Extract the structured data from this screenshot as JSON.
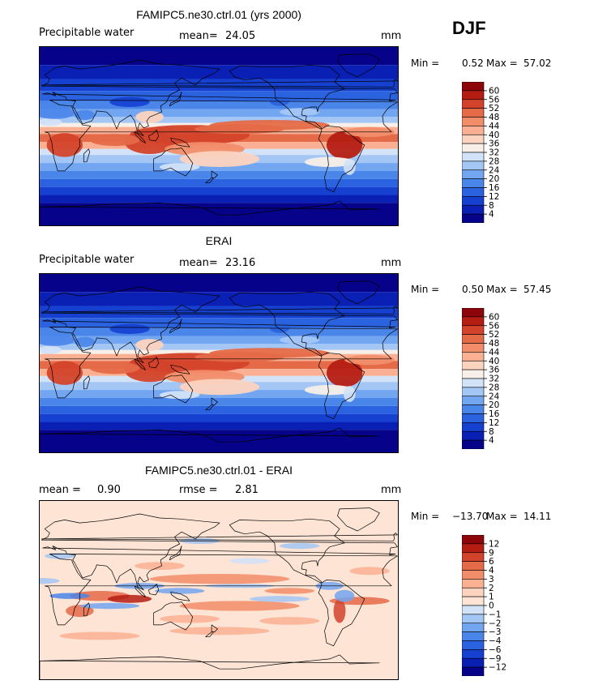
{
  "season": "DJF",
  "panels": [
    {
      "title": "FAMIPC5.ne30.ctrl.01 (yrs 2000)",
      "left_label": "Precipitable water",
      "stat_label": "mean=",
      "stat_value": "24.05",
      "unit": "mm",
      "min_label": "Min =",
      "min_value": "0.52",
      "max_label": "Max =",
      "max_value": "57.02",
      "colorbar_ticks": [
        "60",
        "56",
        "52",
        "48",
        "44",
        "40",
        "36",
        "32",
        "28",
        "24",
        "20",
        "16",
        "12",
        "8",
        "4"
      ]
    },
    {
      "title": "ERAI",
      "left_label": "Precipitable water",
      "stat_label": "mean=",
      "stat_value": "23.16",
      "unit": "mm",
      "min_label": "Min =",
      "min_value": "0.50",
      "max_label": "Max =",
      "max_value": "57.45",
      "colorbar_ticks": [
        "60",
        "56",
        "52",
        "48",
        "44",
        "40",
        "36",
        "32",
        "28",
        "24",
        "20",
        "16",
        "12",
        "8",
        "4"
      ]
    },
    {
      "title": "FAMIPC5.ne30.ctrl.01 - ERAI",
      "left_label": "mean =",
      "left_value": "0.90",
      "stat_label": "rmse =",
      "stat_value": "2.81",
      "unit": "mm",
      "min_label": "Min =",
      "min_value": "−13.70",
      "max_label": "Max =",
      "max_value": "14.11",
      "colorbar_ticks": [
        "12",
        "9",
        "6",
        "4",
        "3",
        "2",
        "1",
        "0",
        "−1",
        "−2",
        "−3",
        "−4",
        "−6",
        "−9",
        "−12"
      ]
    }
  ],
  "colors": {
    "abs_scale": [
      "#06038a",
      "#0a1fb4",
      "#1540d0",
      "#2a62e0",
      "#4a86ea",
      "#73a6f0",
      "#a3c6f5",
      "#d2e2f7",
      "#f7efe8",
      "#fcd3bf",
      "#fbb093",
      "#f28d69",
      "#e56a48",
      "#d3432b",
      "#b51d13",
      "#8c0508"
    ],
    "diff_scale": [
      "#06038a",
      "#0a1fb4",
      "#1540d0",
      "#2a62e0",
      "#4a86ea",
      "#73a6f0",
      "#a3c6f5",
      "#d2e2f7",
      "#fde4d5",
      "#fcd3bf",
      "#fbb093",
      "#f28d69",
      "#e56a48",
      "#d3432b",
      "#b51d13",
      "#8c0508"
    ]
  },
  "chart_data": [
    {
      "type": "heatmap",
      "title": "FAMIPC5.ne30.ctrl.01 (yrs 2000)",
      "variable": "Precipitable water",
      "unit": "mm",
      "mean": 24.05,
      "min": 0.52,
      "max": 57.02,
      "contour_levels": [
        4,
        8,
        12,
        16,
        20,
        24,
        28,
        32,
        36,
        40,
        44,
        48,
        52,
        56,
        60
      ]
    },
    {
      "type": "heatmap",
      "title": "ERAI",
      "variable": "Precipitable water",
      "unit": "mm",
      "mean": 23.16,
      "min": 0.5,
      "max": 57.45,
      "contour_levels": [
        4,
        8,
        12,
        16,
        20,
        24,
        28,
        32,
        36,
        40,
        44,
        48,
        52,
        56,
        60
      ]
    },
    {
      "type": "heatmap",
      "title": "FAMIPC5.ne30.ctrl.01 - ERAI",
      "unit": "mm",
      "mean": 0.9,
      "rmse": 2.81,
      "min": -13.7,
      "max": 14.11,
      "contour_levels": [
        -12,
        -9,
        -6,
        -4,
        -3,
        -2,
        -1,
        0,
        1,
        2,
        3,
        4,
        6,
        9,
        12
      ]
    }
  ]
}
